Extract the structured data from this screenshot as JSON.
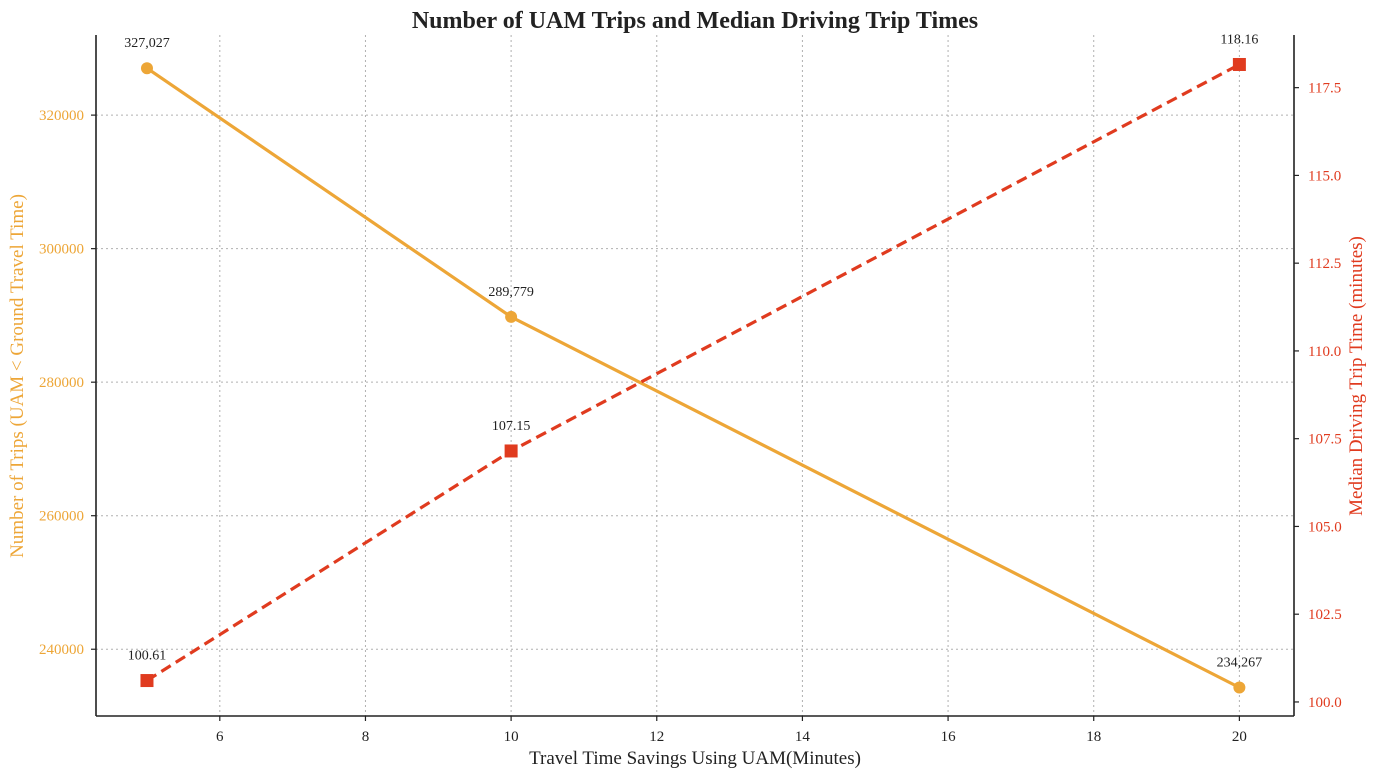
{
  "chart_data": {
    "type": "line",
    "title": "Number of UAM Trips and Median Driving Trip Times",
    "xlabel": "Travel Time Savings Using UAM(Minutes)",
    "xlim": [
      4.3,
      20.75
    ],
    "x_ticks": [
      6,
      8,
      10,
      12,
      14,
      16,
      18,
      20
    ],
    "x": [
      5,
      10,
      20
    ],
    "grid": true,
    "left_axis": {
      "label": "Number of Trips (UAM < Ground Travel Time)",
      "color": "#EDA637",
      "ylim": [
        230000,
        332000
      ],
      "ticks": [
        240000,
        260000,
        280000,
        300000,
        320000
      ]
    },
    "right_axis": {
      "label": "Median Driving Trip Time (minutes)",
      "color": "#E03B1F",
      "ylim": [
        99.6,
        119.0
      ],
      "ticks": [
        "100.0",
        "102.5",
        "105.0",
        "107.5",
        "110.0",
        "112.5",
        "115.0",
        "117.5"
      ]
    },
    "series": [
      {
        "axis": "left",
        "values": [
          327027,
          289779,
          234267
        ],
        "labels": [
          "327,027",
          "289,779",
          "234,267"
        ],
        "color": "#EDA637",
        "marker": "circle",
        "line_style": "solid"
      },
      {
        "axis": "right",
        "values": [
          100.61,
          107.15,
          118.16
        ],
        "labels": [
          "100.61",
          "107.15",
          "118.16"
        ],
        "color": "#E03B1F",
        "marker": "square",
        "line_style": "dashed"
      }
    ]
  }
}
